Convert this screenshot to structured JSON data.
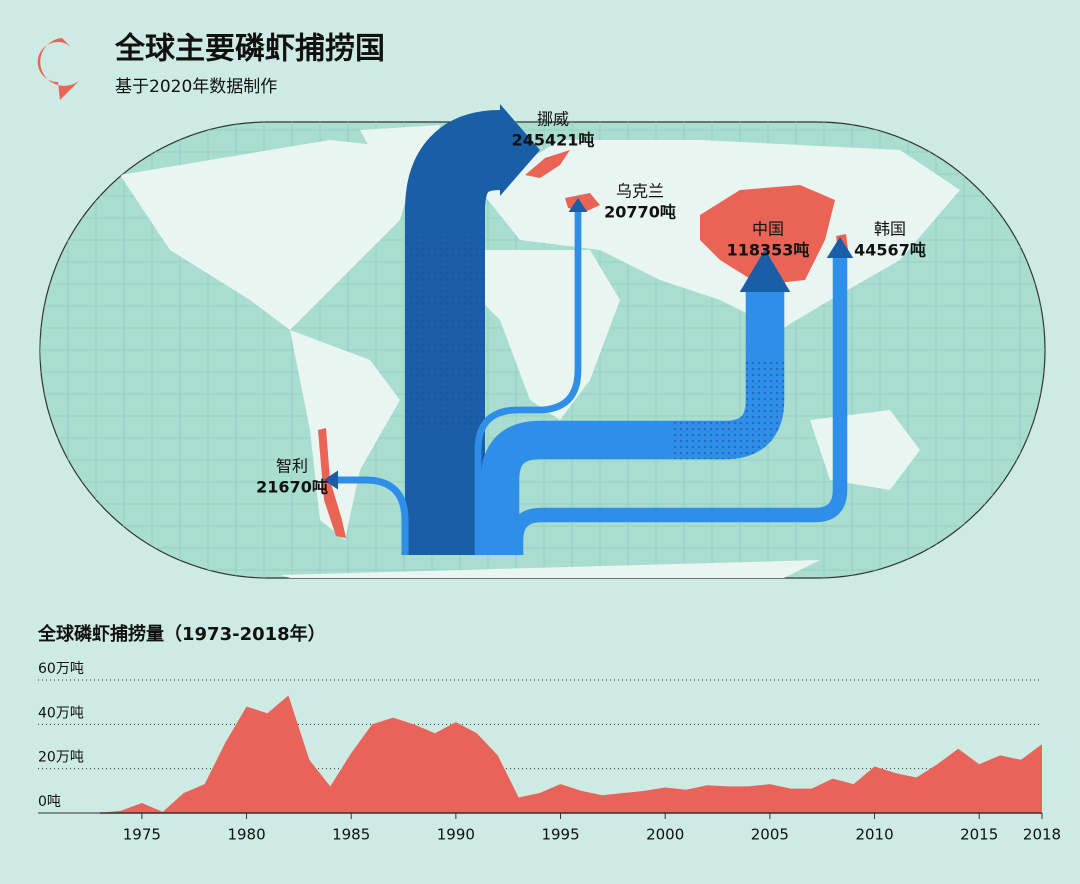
{
  "header": {
    "title": "全球主要磷虾捕捞国",
    "subtitle": "基于2020年数据制作"
  },
  "chart_data": [
    {
      "type": "flow",
      "color": "#2f8fe8",
      "dark_color": "#1a5ea8",
      "highlight_color": "#ea6456",
      "categories": [
        "挪威",
        "乌克兰",
        "中国",
        "韩国",
        "智利"
      ],
      "values": [
        245421,
        20770,
        118353,
        44567,
        21670
      ],
      "value_labels": [
        "245421吨",
        "20770吨",
        "118353吨",
        "44567吨",
        "21670吨"
      ]
    },
    {
      "type": "area",
      "title": "全球磷虾捕捞量（1973-2018年）",
      "color": "#e8645a",
      "x": [
        1973,
        1974,
        1975,
        1976,
        1977,
        1978,
        1979,
        1980,
        1981,
        1982,
        1983,
        1984,
        1985,
        1986,
        1987,
        1988,
        1989,
        1990,
        1991,
        1992,
        1993,
        1994,
        1995,
        1996,
        1997,
        1998,
        1999,
        2000,
        2001,
        2002,
        2003,
        2004,
        2005,
        2006,
        2007,
        2008,
        2009,
        2010,
        2011,
        2012,
        2013,
        2014,
        2015,
        2016,
        2017,
        2018
      ],
      "values": [
        0,
        1,
        4.5,
        0.5,
        9,
        13,
        32,
        48,
        45,
        53,
        24,
        12,
        27,
        40,
        43,
        40,
        36,
        41,
        36,
        26,
        7,
        9,
        13,
        10,
        8,
        9,
        10,
        11.5,
        10.5,
        12.5,
        12,
        12,
        13,
        11,
        11,
        15.5,
        13,
        21,
        18,
        16,
        22,
        29,
        22,
        26,
        24,
        31
      ],
      "xlim": [
        1973,
        2018
      ],
      "xticks": [
        1975,
        1980,
        1985,
        1990,
        1995,
        2000,
        2005,
        2010,
        2015,
        2018
      ],
      "ylim": [
        0,
        60
      ],
      "yticks": [
        {
          "value": 0,
          "label": "0吨"
        },
        {
          "value": 20,
          "label": "20万吨"
        },
        {
          "value": 40,
          "label": "40万吨"
        },
        {
          "value": 60,
          "label": "60万吨"
        }
      ],
      "grid": true
    }
  ]
}
